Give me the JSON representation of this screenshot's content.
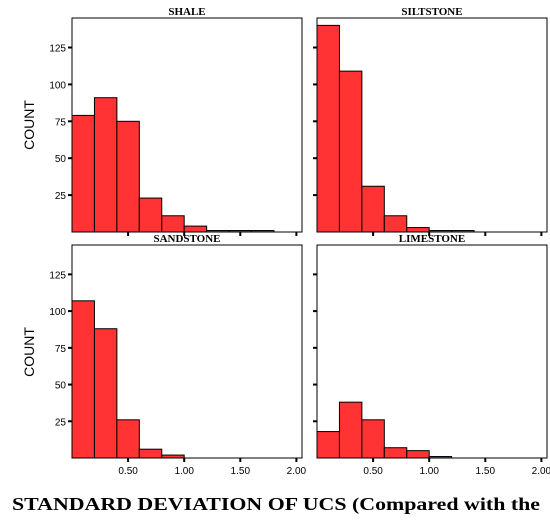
{
  "chart_data": {
    "type": "bar",
    "subtype": "histogram-grid",
    "xlabel": "STANDARD DEVIATION OF UCS (Compared with the",
    "ylabel": "COUNT",
    "xlim": [
      0,
      2.05
    ],
    "ylim": [
      0,
      145
    ],
    "bin_width": 0.2,
    "bin_starts": [
      0.0,
      0.2,
      0.4,
      0.6,
      0.8,
      1.0,
      1.2,
      1.4,
      1.6,
      1.8
    ],
    "x_ticks": [
      0.5,
      1.0,
      1.5,
      2.0
    ],
    "x_tick_labels": [
      "0.50",
      "1.00",
      "1.50",
      "2.00"
    ],
    "y_ticks": [
      25,
      50,
      75,
      100,
      125
    ],
    "y_tick_labels": [
      "25",
      "50",
      "75",
      "100",
      "125"
    ],
    "bar_color": "#ff3333",
    "grid": false,
    "panels": [
      {
        "title": "SHALE",
        "values": [
          79,
          91,
          75,
          23,
          11,
          4,
          1,
          1,
          1,
          0
        ]
      },
      {
        "title": "SILTSTONE",
        "values": [
          140,
          109,
          31,
          11,
          3,
          1,
          1,
          0,
          0,
          0
        ]
      },
      {
        "title": "SANDSTONE",
        "values": [
          107,
          88,
          26,
          6,
          2,
          0,
          0,
          0,
          0,
          0
        ]
      },
      {
        "title": "LIMESTONE",
        "values": [
          18,
          38,
          26,
          7,
          5,
          1,
          0,
          0,
          0,
          0
        ]
      }
    ]
  }
}
